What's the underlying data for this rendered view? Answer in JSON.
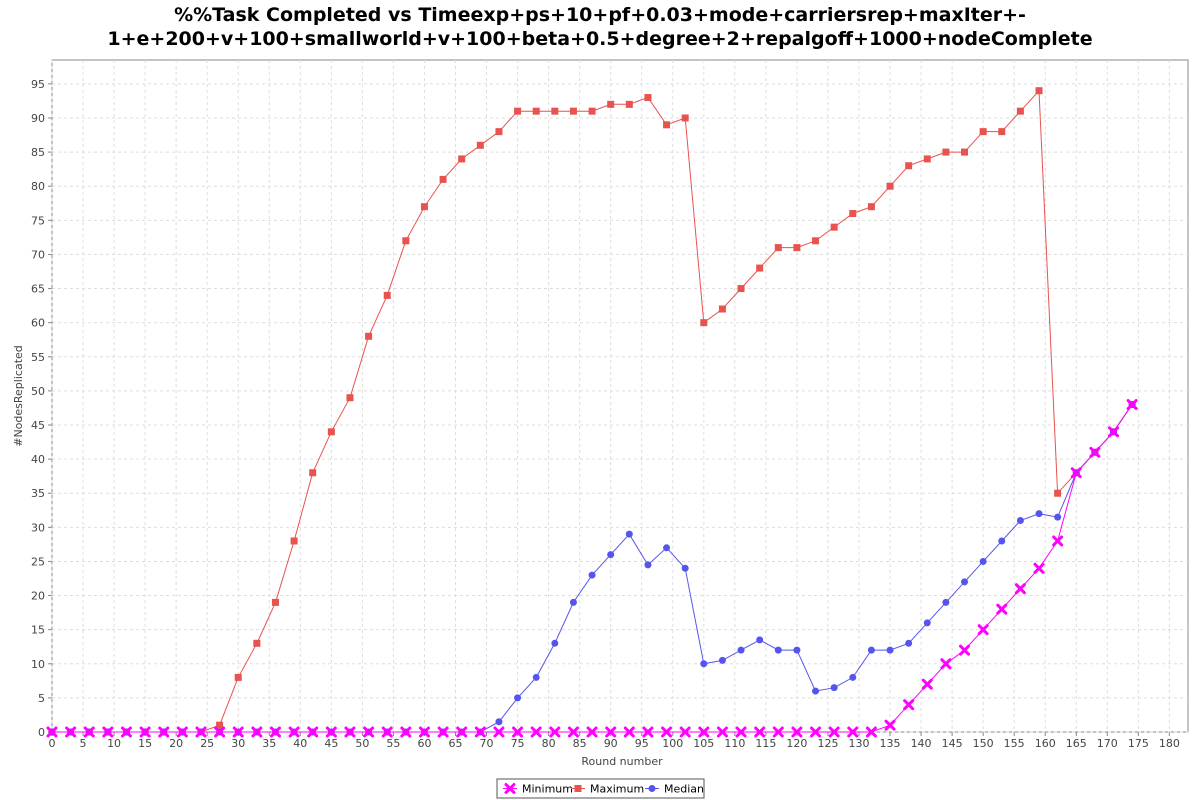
{
  "chart_data": {
    "type": "line",
    "title": "%%Task Completed vs Timeexp+ps+10+pf+0.03+mode+carriersrep+maxIter+-1+e+200+v+100+smallworld+v+100+beta+0.5+degree+2+repalgoff+1000+nodeComplete",
    "title_lines": [
      "%%Task Completed vs Timeexp+ps+10+pf+0.03+mode+carriersrep+maxIter+-",
      "1+e+200+v+100+smallworld+v+100+beta+0.5+degree+2+repalgoff+1000+nodeComplete"
    ],
    "xlabel": "Round number",
    "ylabel": "#NodesReplicated",
    "xlim": [
      0,
      183
    ],
    "ylim": [
      0,
      98.5
    ],
    "xticks": [
      0,
      5,
      10,
      15,
      20,
      25,
      30,
      35,
      40,
      45,
      50,
      55,
      60,
      65,
      70,
      75,
      80,
      85,
      90,
      95,
      100,
      105,
      110,
      115,
      120,
      125,
      130,
      135,
      140,
      145,
      150,
      155,
      160,
      165,
      170,
      175,
      180
    ],
    "yticks": [
      0,
      5,
      10,
      15,
      20,
      25,
      30,
      35,
      40,
      45,
      50,
      55,
      60,
      65,
      70,
      75,
      80,
      85,
      90,
      95
    ],
    "grid": true,
    "legend_position": "bottom",
    "colors": {
      "Minimum": "#ff00ff",
      "Maximum": "#e8524f",
      "Median": "#5555ee"
    },
    "series": [
      {
        "name": "Minimum",
        "marker": "x",
        "x": [
          0,
          3,
          6,
          9,
          12,
          15,
          18,
          21,
          24,
          27,
          30,
          33,
          36,
          39,
          42,
          45,
          48,
          51,
          54,
          57,
          60,
          63,
          66,
          69,
          72,
          75,
          78,
          81,
          84,
          87,
          90,
          93,
          96,
          99,
          102,
          105,
          108,
          111,
          114,
          117,
          120,
          123,
          126,
          129,
          132,
          135,
          138,
          141,
          144,
          147,
          150,
          153,
          156,
          159,
          162,
          165,
          168,
          171,
          174
        ],
        "values": [
          0,
          0,
          0,
          0,
          0,
          0,
          0,
          0,
          0,
          0,
          0,
          0,
          0,
          0,
          0,
          0,
          0,
          0,
          0,
          0,
          0,
          0,
          0,
          0,
          0,
          0,
          0,
          0,
          0,
          0,
          0,
          0,
          0,
          0,
          0,
          0,
          0,
          0,
          0,
          0,
          0,
          0,
          0,
          0,
          0,
          1,
          4,
          7,
          10,
          12,
          15,
          18,
          21,
          24,
          28,
          38,
          41,
          44,
          48
        ]
      },
      {
        "name": "Maximum",
        "marker": "square",
        "x": [
          0,
          3,
          6,
          9,
          12,
          15,
          18,
          21,
          24,
          27,
          30,
          33,
          36,
          39,
          42,
          45,
          48,
          51,
          54,
          57,
          60,
          63,
          66,
          69,
          72,
          75,
          78,
          81,
          84,
          87,
          90,
          93,
          96,
          99,
          102,
          105,
          108,
          111,
          114,
          117,
          120,
          123,
          126,
          129,
          132,
          135,
          138,
          141,
          144,
          147,
          150,
          153,
          156,
          159,
          162,
          165,
          168,
          171,
          174
        ],
        "values": [
          0,
          0,
          0,
          0,
          0,
          0,
          0,
          0,
          0,
          1,
          8,
          13,
          19,
          28,
          38,
          44,
          49,
          58,
          64,
          72,
          77,
          81,
          84,
          86,
          88,
          91,
          91,
          91,
          91,
          91,
          92,
          92,
          93,
          89,
          90,
          60,
          62,
          65,
          68,
          71,
          71,
          72,
          74,
          76,
          77,
          80,
          83,
          84,
          85,
          85,
          88,
          88,
          91,
          94,
          35,
          38,
          41,
          44,
          48
        ]
      },
      {
        "name": "Median",
        "marker": "circle",
        "x": [
          0,
          3,
          6,
          9,
          12,
          15,
          18,
          21,
          24,
          27,
          30,
          33,
          36,
          39,
          42,
          45,
          48,
          51,
          54,
          57,
          60,
          63,
          66,
          69,
          72,
          75,
          78,
          81,
          84,
          87,
          90,
          93,
          96,
          99,
          102,
          105,
          108,
          111,
          114,
          117,
          120,
          123,
          126,
          129,
          132,
          135,
          138,
          141,
          144,
          147,
          150,
          153,
          156,
          159,
          162,
          165,
          168,
          171,
          174
        ],
        "values": [
          0,
          0,
          0,
          0,
          0,
          0,
          0,
          0,
          0,
          0,
          0,
          0,
          0,
          0,
          0,
          0,
          0,
          0,
          0,
          0,
          0,
          0,
          0,
          0,
          1.5,
          5,
          8,
          13,
          19,
          23,
          26,
          29,
          24.5,
          27,
          24,
          10,
          10.5,
          12,
          13.5,
          12,
          12,
          6,
          6.5,
          8,
          12,
          12,
          13,
          16,
          19,
          22,
          25,
          28,
          31,
          32,
          31.5,
          38,
          41,
          44,
          48
        ]
      }
    ]
  }
}
